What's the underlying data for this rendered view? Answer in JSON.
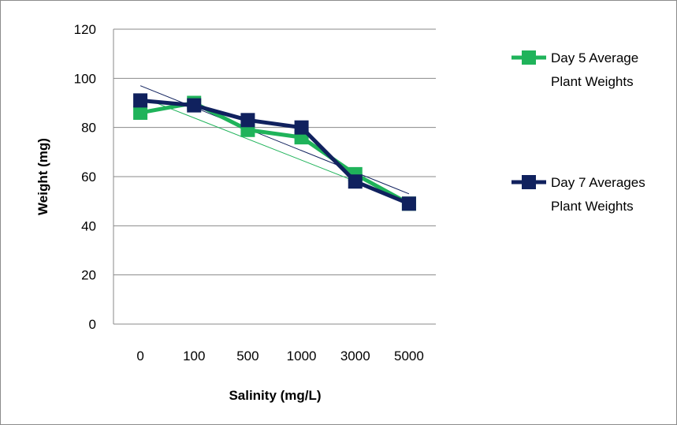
{
  "chart_data": {
    "type": "line",
    "title": "",
    "xlabel": "Salinity (mg/L)",
    "ylabel": "Weight (mg)",
    "categories": [
      "0",
      "100",
      "500",
      "1000",
      "3000",
      "5000"
    ],
    "ylim": [
      0,
      120
    ],
    "yticks": [
      0,
      20,
      40,
      60,
      80,
      100,
      120
    ],
    "grid": true,
    "legend_position": "right",
    "series": [
      {
        "name": "Day 5 Average Plant Weights",
        "color": "#1fb35a",
        "marker": "square",
        "values": [
          86,
          90,
          79,
          76,
          61,
          49
        ],
        "trendline": {
          "start": 92.5,
          "end": 49.5
        }
      },
      {
        "name": "Day 7 Averages Plant Weights",
        "color": "#10215e",
        "marker": "square",
        "values": [
          91,
          89,
          83,
          80,
          58,
          49
        ],
        "trendline": {
          "start": 97,
          "end": 53
        }
      }
    ],
    "legend": [
      {
        "line1": "Day 5 Average",
        "line2": "Plant Weights"
      },
      {
        "line1": "Day 7 Averages",
        "line2": "Plant Weights"
      }
    ]
  }
}
